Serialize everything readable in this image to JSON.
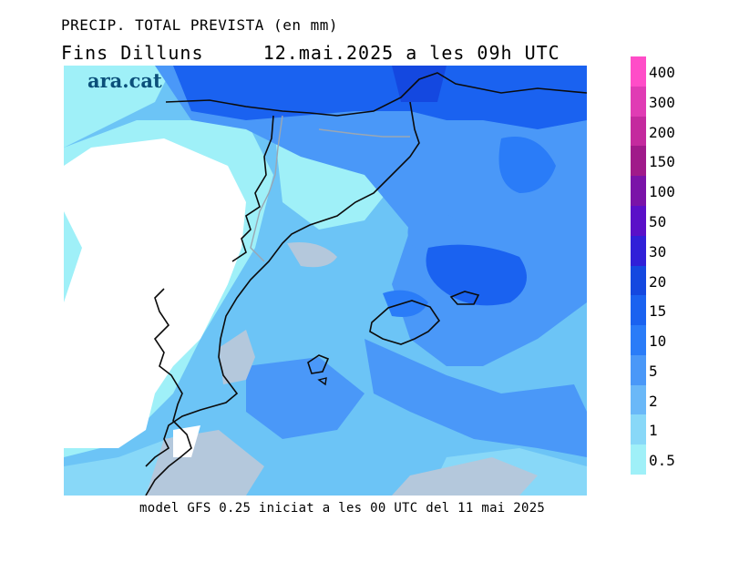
{
  "header": {
    "title": "PRECIP. TOTAL PREVISTA (en mm)",
    "subtitle": "Fins Dilluns     12.mai.2025 a les 09h UTC"
  },
  "brand": {
    "logo_text": "ara.cat"
  },
  "footer": {
    "text": "model GFS 0.25 iniciat a les 00 UTC del 11 mai 2025"
  },
  "legend": {
    "labels": [
      "400",
      "300",
      "200",
      "150",
      "100",
      "50",
      "30",
      "20",
      "15",
      "10",
      "5",
      "2",
      "1",
      "0.5"
    ],
    "colors": [
      "#ff4dc8",
      "#e03cb4",
      "#c42a9e",
      "#a01a8a",
      "#7a13a8",
      "#5a10c8",
      "#3020d8",
      "#1448e0",
      "#1a62f0",
      "#2a7cf8",
      "#4a98f8",
      "#6ab8f8",
      "#88d8f8",
      "#9ff0f8"
    ]
  },
  "map": {
    "region": "Catalonia, Valencia and Balearic Islands",
    "colors": {
      "sea_base": "#6cc4f6",
      "light": "#9ff0f8",
      "medium": "#4a98f8",
      "heavy": "#1a62f0",
      "grey_area": "#b4c8dc",
      "land_dry": "#ffffff"
    }
  }
}
